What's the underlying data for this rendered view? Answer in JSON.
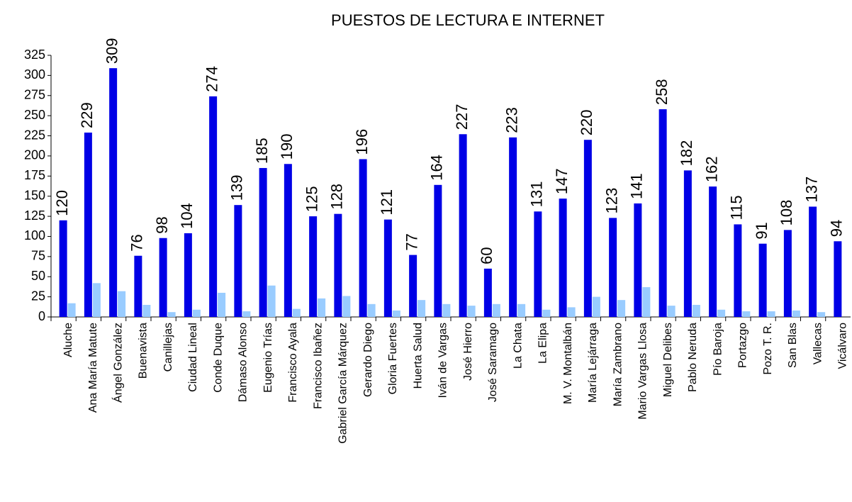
{
  "chart_data": {
    "type": "bar",
    "title": "PUESTOS DE LECTURA E INTERNET",
    "categories": [
      "Aluche",
      "Ana María Matute",
      "Ángel González",
      "Buenavista",
      "Canillejas",
      "Ciudad Lineal",
      "Conde Duque",
      "Dámaso Alonso",
      "Eugenio Trías",
      "Francisco Ayala",
      "Francisco Ibañez",
      "Gabriel García Márquez",
      "Gerardo Diego",
      "Gloria Fuertes",
      "Huerta Salud",
      "Iván de Vargas",
      "José Hierro",
      "José Saramago",
      "La Chata",
      "La Elipa",
      "M. V. Montalbán",
      "María Lejárraga",
      "María Zambrano",
      "Mario Vargas Llosa",
      "Miguel Delibes",
      "Pablo Neruda",
      "Pío Baroja",
      "Portazgo",
      "Pozo T. R.",
      "San Blas",
      "Vallecas",
      "Vicálvaro"
    ],
    "series": [
      {
        "color": "#0000e6",
        "labels": true,
        "values": [
          120,
          229,
          309,
          76,
          98,
          104,
          274,
          139,
          185,
          190,
          125,
          128,
          196,
          121,
          77,
          164,
          227,
          60,
          223,
          131,
          147,
          220,
          123,
          141,
          258,
          182,
          162,
          115,
          91,
          108,
          137,
          94
        ]
      },
      {
        "color": "#99ccff",
        "labels": false,
        "values": [
          17,
          42,
          32,
          15,
          6,
          9,
          30,
          7,
          39,
          10,
          23,
          26,
          16,
          8,
          21,
          16,
          14,
          16,
          16,
          9,
          12,
          25,
          21,
          37,
          14,
          15,
          9,
          7,
          7,
          8,
          6,
          0
        ]
      }
    ],
    "ylim": [
      0,
      325
    ],
    "yticks": [
      0,
      25,
      50,
      75,
      100,
      125,
      150,
      175,
      200,
      225,
      250,
      275,
      300,
      325
    ]
  }
}
